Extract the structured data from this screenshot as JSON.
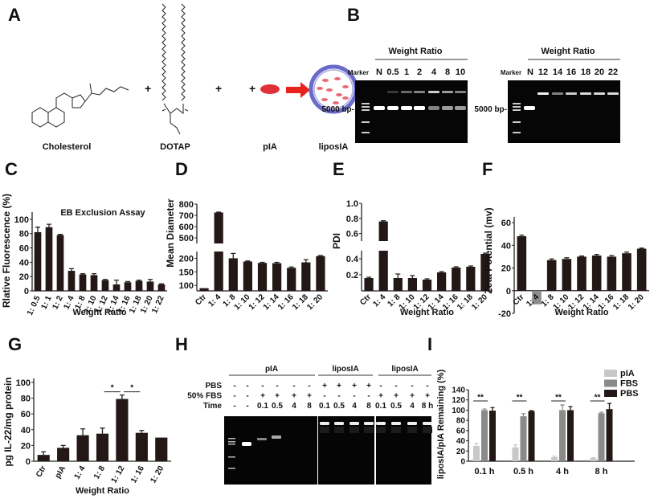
{
  "panel_letters": [
    "A",
    "B",
    "C",
    "D",
    "E",
    "F",
    "G",
    "H",
    "I"
  ],
  "panel_A": {
    "labels": {
      "cholesterol": "Cholesterol",
      "dotap": "DOTAP",
      "pia": "pIA",
      "liposia": "liposIA"
    },
    "plus_sign": "+",
    "colors": {
      "pia": "#e0303a",
      "arrow": "#e8221c",
      "liposome": "#6a6ac8",
      "cargo": "#e86a78"
    }
  },
  "panel_B": {
    "gels": [
      {
        "header": "Weight Ratio",
        "lanes": [
          "Marker",
          "N",
          "0.5",
          "1",
          "2",
          "4",
          "8",
          "10"
        ],
        "marker_label": "5000 bp-"
      },
      {
        "header": "Weight Ratio",
        "lanes": [
          "Marker",
          "N",
          "12",
          "14",
          "16",
          "18",
          "20",
          "22"
        ],
        "marker_label": "5000 bp-"
      }
    ]
  },
  "panel_H": {
    "groups": [
      "pIA",
      "liposIA",
      "liposIA"
    ],
    "rows": [
      {
        "label": "PBS",
        "values": [
          "-",
          "-",
          "-",
          "-",
          "-",
          "-",
          "+",
          "+",
          "+",
          "+",
          "-",
          "-",
          "-",
          "-"
        ]
      },
      {
        "label": "50% FBS",
        "values": [
          "-",
          "-",
          "+",
          "+",
          "+",
          "+",
          "-",
          "-",
          "-",
          "-",
          "+",
          "+",
          "+",
          "+"
        ]
      },
      {
        "label": "Time",
        "values": [
          "-",
          "-",
          "0.1",
          "0.5",
          "4",
          "8",
          "0.1",
          "0.5",
          "4",
          "8",
          "0.1",
          "0.5",
          "4",
          "8 h"
        ]
      }
    ]
  },
  "chart_data": [
    {
      "panel": "C",
      "type": "bar",
      "title": "EB Exclusion Assay",
      "xlabel": "Weight Ratio",
      "ylabel": "Rlative Fluorescence (%)",
      "categories": [
        "1: 0.5",
        "1: 1",
        "1: 2",
        "1: 4",
        "1: 8",
        "1: 10",
        "1: 12",
        "1: 14",
        "1: 16",
        "1: 18",
        "1: 20",
        "1: 22"
      ],
      "values": [
        82,
        89,
        78,
        28,
        23,
        22,
        15,
        9,
        12,
        14,
        13,
        9
      ],
      "errors": [
        7,
        4,
        1,
        3,
        1,
        2,
        1,
        6,
        1,
        1,
        3,
        1
      ],
      "ylim": [
        0,
        110
      ],
      "y_ticks": [
        "0",
        "20",
        "40",
        "60",
        "80",
        "100"
      ],
      "bar_color": "#231815",
      "grid": false
    },
    {
      "panel": "D",
      "type": "bar",
      "title": "",
      "xlabel": "",
      "ylabel": "Mean Diameter",
      "categories": [
        "Ctr",
        "1: 4",
        "1: 8",
        "1: 10",
        "1: 12",
        "1: 14",
        "1: 16",
        "1: 18",
        "1: 20"
      ],
      "values": [
        90,
        725,
        200,
        188,
        183,
        182,
        165,
        185,
        208
      ],
      "errors": [
        0,
        3,
        18,
        2,
        2,
        3,
        3,
        10,
        2
      ],
      "broken_axis": [
        [
          80,
          225
        ],
        [
          450,
          800
        ]
      ],
      "y_ticks": [
        "100",
        "150",
        "200",
        "500",
        "600",
        "700",
        "800"
      ],
      "bar_color": "#231815",
      "grid": false
    },
    {
      "panel": "E",
      "type": "bar",
      "title": "",
      "xlabel": "Weight Ratio",
      "ylabel": "PDI",
      "categories": [
        "Ctr",
        "1: 4",
        "1: 8",
        "1: 10",
        "1: 12",
        "1: 14",
        "1: 16",
        "1: 18",
        "1: 20"
      ],
      "values": [
        0.16,
        0.76,
        0.16,
        0.16,
        0.14,
        0.23,
        0.29,
        0.3,
        0.46
      ],
      "errors": [
        0.01,
        0.01,
        0.05,
        0.03,
        0.01,
        0.01,
        0.01,
        0.01,
        0.01
      ],
      "broken_axis": [
        [
          0,
          0.5
        ],
        [
          0.5,
          1.0
        ]
      ],
      "y_ticks": [
        "0.2",
        "0.4",
        "0.6",
        "0.8",
        "1.0"
      ],
      "bar_color": "#231815",
      "grid": false
    },
    {
      "panel": "F",
      "type": "bar",
      "title": "",
      "xlabel": "Weight Ratio",
      "ylabel": "Zeta Potential (mv)",
      "categories": [
        "Ctr",
        "1: 4",
        "1: 8",
        "1: 10",
        "1: 12",
        "1: 14",
        "1: 16",
        "1: 18",
        "1: 20"
      ],
      "values": [
        48,
        -12,
        27,
        28,
        30,
        31,
        30,
        33,
        37
      ],
      "errors": [
        1,
        0,
        1,
        1,
        0.5,
        1,
        1,
        1,
        0.5
      ],
      "ylim": [
        -20,
        65
      ],
      "y_ticks": [
        "-20",
        "0",
        "20",
        "40",
        "60"
      ],
      "bar_color": "#231815",
      "negative_bar_color": "#8c8c8c",
      "grid": false
    },
    {
      "panel": "G",
      "type": "bar",
      "title": "",
      "xlabel": "Weight Ratio",
      "ylabel": "pg IL-22/mg protein",
      "categories": [
        "Ctr",
        "pIA",
        "1: 4",
        "1: 8",
        "1: 12",
        "1: 16",
        "1: 20"
      ],
      "values": [
        8,
        17,
        33,
        35,
        79,
        36,
        30
      ],
      "errors": [
        4,
        3,
        8,
        7,
        5,
        3,
        0
      ],
      "ylim": [
        0,
        105
      ],
      "y_ticks": [
        "0",
        "20",
        "40",
        "60",
        "80",
        "100"
      ],
      "significance": [
        {
          "from": "1: 8",
          "to": "1: 12",
          "label": "*"
        },
        {
          "from": "1: 12",
          "to": "1: 16",
          "label": "*"
        }
      ],
      "bar_color": "#231815",
      "grid": false
    },
    {
      "panel": "I",
      "type": "bar",
      "title": "",
      "xlabel": "",
      "ylabel": "liposIA/pIA Remaining (%)",
      "categories": [
        "0.1 h",
        "0.5 h",
        "4 h",
        "8 h"
      ],
      "series": [
        {
          "name": "pIA",
          "values": [
            30,
            27,
            8,
            6
          ],
          "errors": [
            5,
            5,
            2,
            1
          ],
          "color": "#c8c8c8"
        },
        {
          "name": "FBS",
          "values": [
            100,
            88,
            100,
            94
          ],
          "errors": [
            2,
            5,
            10,
            2
          ],
          "color": "#8a8a8a"
        },
        {
          "name": "PBS",
          "values": [
            99,
            98,
            100,
            102
          ],
          "errors": [
            6,
            1,
            7,
            11
          ],
          "color": "#231815"
        }
      ],
      "significance_label": "**",
      "ylim": [
        0,
        140
      ],
      "y_ticks": [
        "0",
        "20",
        "40",
        "60",
        "80",
        "100",
        "120",
        "140"
      ],
      "legend": "top-right",
      "grid": false
    }
  ]
}
